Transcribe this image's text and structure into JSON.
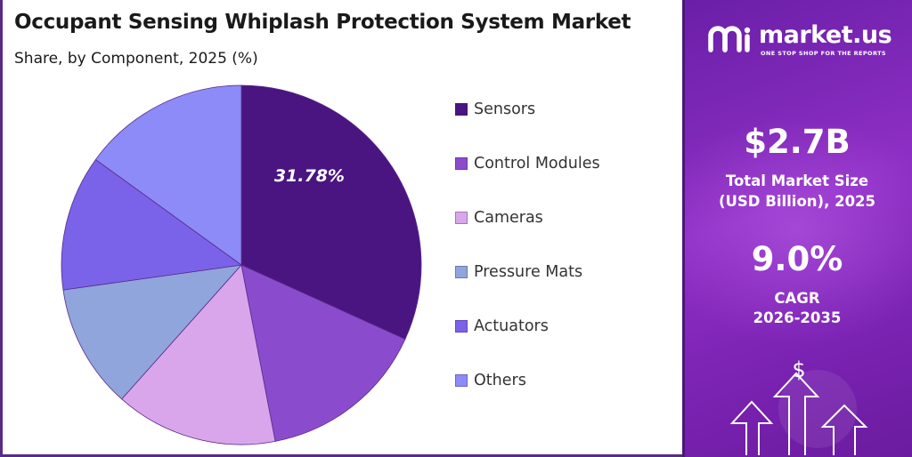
{
  "title": "Occupant Sensing Whiplash Protection System Market",
  "subtitle": "Share, by Component, 2025 (%)",
  "chart_data": {
    "type": "pie",
    "title": "Occupant Sensing Whiplash Protection System Market",
    "subtitle": "Share, by Component, 2025 (%)",
    "categories": [
      "Sensors",
      "Control Modules",
      "Cameras",
      "Pressure Mats",
      "Actuators",
      "Others"
    ],
    "values": [
      31.78,
      15.2,
      14.6,
      11.2,
      12.2,
      15.02
    ],
    "colors": [
      "#4a1580",
      "#8a4ccd",
      "#d9a6ec",
      "#8fa5dc",
      "#7a63e8",
      "#8c8bf7"
    ],
    "data_labels": [
      "31.78%",
      "",
      "",
      "",
      "",
      ""
    ],
    "start_angle_deg": 0,
    "direction": "clockwise",
    "legend_position": "right"
  },
  "legend": [
    {
      "label": "Sensors",
      "color": "#4a1580"
    },
    {
      "label": "Control Modules",
      "color": "#8a4ccd"
    },
    {
      "label": "Cameras",
      "color": "#d9a6ec"
    },
    {
      "label": "Pressure Mats",
      "color": "#8fa5dc"
    },
    {
      "label": "Actuators",
      "color": "#7a63e8"
    },
    {
      "label": "Others",
      "color": "#8c8bf7"
    }
  ],
  "sidebar": {
    "brand_name": "market.us",
    "brand_tagline": "ONE STOP SHOP FOR THE REPORTS",
    "market_size_value": "$2.7B",
    "market_size_label_1": "Total Market Size",
    "market_size_label_2": "(USD Billion), 2025",
    "cagr_value": "9.0%",
    "cagr_label_1": "CAGR",
    "cagr_label_2": "2026-2035",
    "dollar_symbol": "$",
    "logo_icon": "market-us-logo-icon",
    "growth_icon": "growth-arrows-icon"
  }
}
